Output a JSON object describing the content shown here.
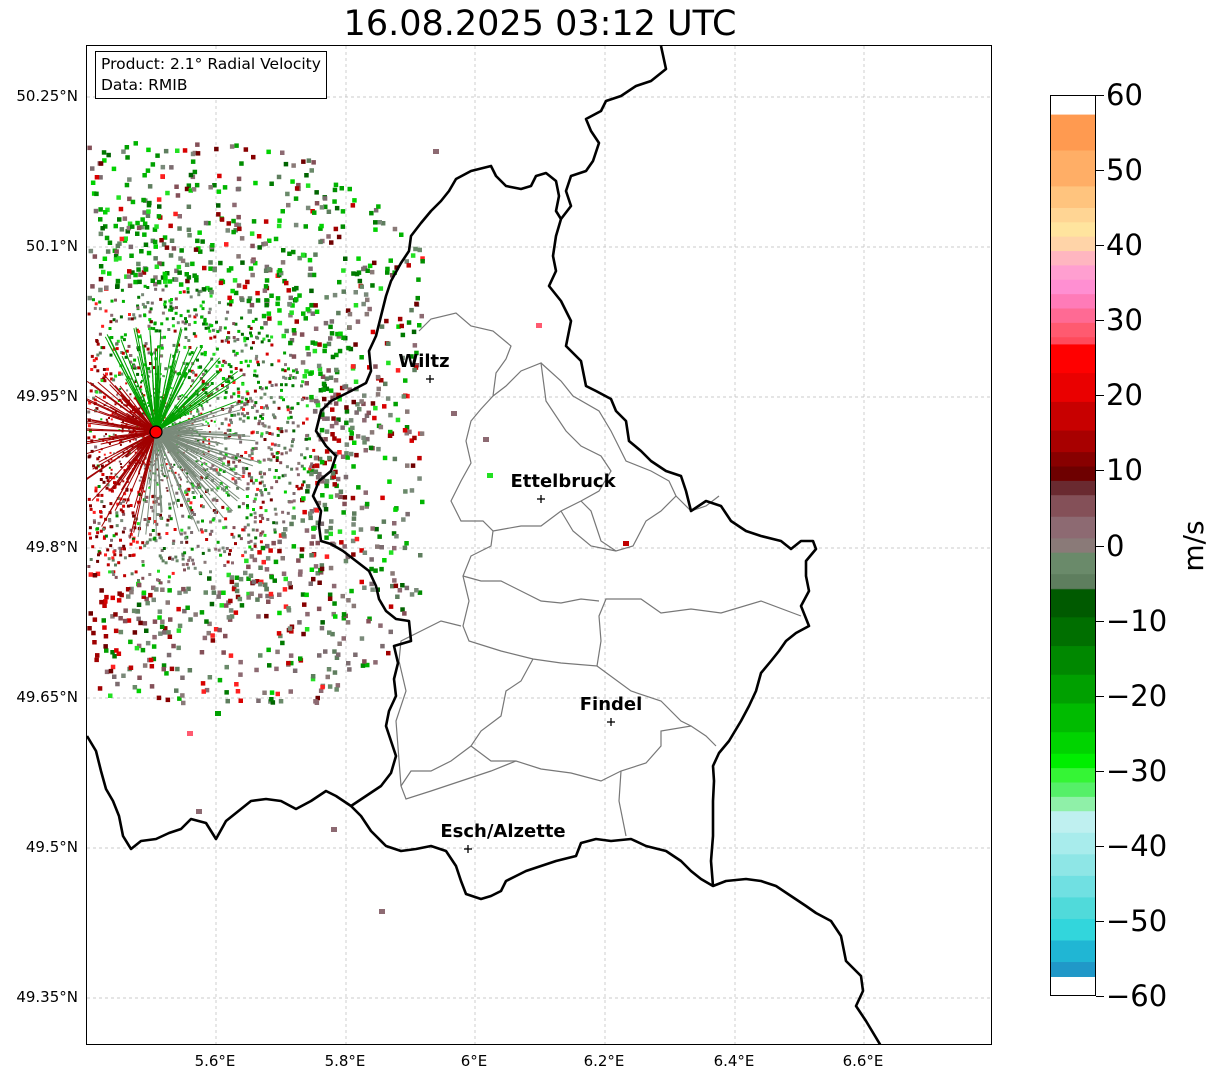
{
  "title": "16.08.2025 03:12 UTC",
  "info": {
    "product": "Product: 2.1° Radial Velocity",
    "source": "Data: RMIB"
  },
  "axes": {
    "lat_ticks": [
      "50.25°N",
      "50.1°N",
      "49.95°N",
      "49.8°N",
      "49.65°N",
      "49.5°N",
      "49.35°N"
    ],
    "lon_ticks": [
      "5.6°E",
      "5.8°E",
      "6°E",
      "6.2°E",
      "6.4°E",
      "6.6°E"
    ]
  },
  "cities": [
    {
      "name": "Wiltz"
    },
    {
      "name": "Ettelbruck"
    },
    {
      "name": "Findel"
    },
    {
      "name": "Esch/Alzette"
    }
  ],
  "colorbar": {
    "unit": "m/s",
    "min": -60,
    "max": 60,
    "tick_labels": [
      "60",
      "50",
      "40",
      "30",
      "20",
      "10",
      "0",
      "−10",
      "−20",
      "−30",
      "−40",
      "−50",
      "−60"
    ]
  },
  "colors": {
    "radar_site": "#ff0000",
    "border": "#000000",
    "canton_lines": "#777777",
    "grid": "#bbbbbb"
  }
}
